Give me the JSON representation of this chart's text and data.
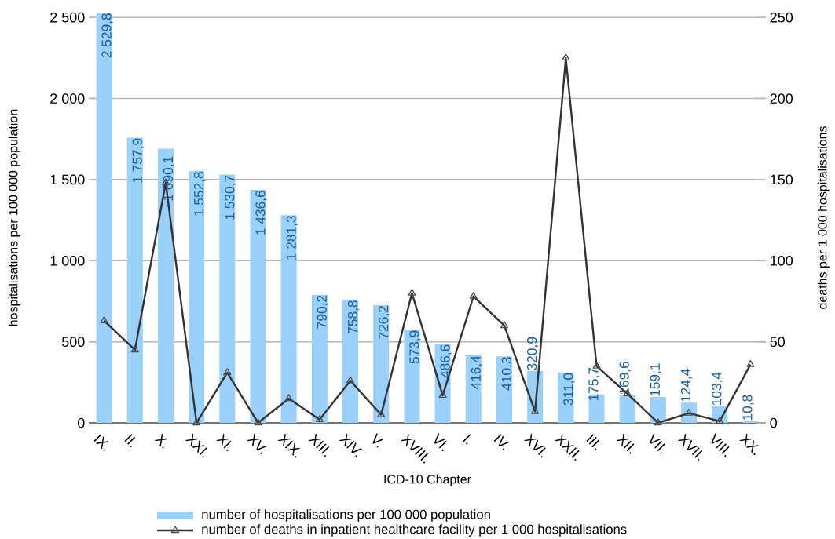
{
  "chart_data": {
    "type": "bar",
    "categories": [
      "IX.",
      "II.",
      "X.",
      "XXI.",
      "XI.",
      "XV.",
      "XIX.",
      "XIII.",
      "XIV.",
      "V.",
      "XVIII.",
      "VI.",
      "I.",
      "IV.",
      "XVI.",
      "XXII.",
      "III.",
      "XII.",
      "VII.",
      "XVII.",
      "VIII.",
      "XX."
    ],
    "series": [
      {
        "name": "number of hospitalisations per 100 000 population",
        "type": "bar",
        "color": "#99d1fb",
        "values": [
          2529.8,
          1757.9,
          1690.1,
          1552.8,
          1530.7,
          1436.6,
          1281.3,
          790.2,
          758.8,
          726.2,
          573.9,
          486.6,
          416.4,
          410.3,
          320.9,
          311.0,
          175.7,
          169.6,
          159.1,
          124.4,
          103.4,
          10.8
        ],
        "value_labels": [
          "2 529,8",
          "1 757,9",
          "1 690,1",
          "1 552,8",
          "1 530,7",
          "1 436,6",
          "1 281,3",
          "790,2",
          "758,8",
          "726,2",
          "573,9",
          "486,6",
          "416,4",
          "410,3",
          "320,9",
          "311,0",
          "175,7",
          "169,6",
          "159,1",
          "124,4",
          "103,4",
          "10,8"
        ]
      },
      {
        "name": "number of deaths in inpatient healthcare facility per 1 000 hospitalisations",
        "type": "line",
        "axis": "y2",
        "color": "#333333",
        "marker": "triangle",
        "values": [
          63,
          45,
          148,
          0,
          31,
          0,
          15,
          2,
          26,
          5,
          80,
          17,
          78,
          60,
          7,
          225,
          35,
          18,
          0,
          6,
          1,
          36
        ]
      }
    ],
    "xlabel": "ICD-10 Chapter",
    "ylabel": "hospitalisations  per 100 000 population",
    "y2label": "deaths  per 1 000 hospitalisations",
    "ylim": [
      0,
      2530
    ],
    "yticks": [
      0,
      {
        "value": 500,
        "label": "500"
      },
      {
        "value": 1000,
        "label": "1 000"
      },
      {
        "value": 1500,
        "label": "1 500"
      },
      {
        "value": 2000,
        "label": "2 000"
      },
      {
        "value": 2500,
        "label": "2 500"
      }
    ],
    "y2lim": [
      0,
      253
    ],
    "y2ticks": [
      0,
      50,
      100,
      150,
      200,
      250
    ],
    "grid": "y",
    "legend": "bottom"
  }
}
